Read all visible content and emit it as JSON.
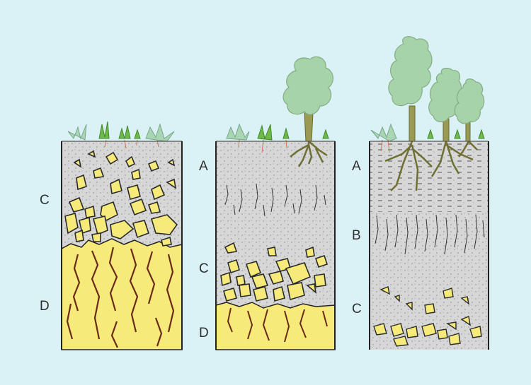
{
  "colors": {
    "background": "#daf2f6",
    "soil": "#d7d7d7",
    "bedrock": "#f5ea7a",
    "rock_outline": "#2a2a2a",
    "fracture": "#6b2a1a",
    "tree_crown": "#a6d3a8",
    "root": "#7a7a3a",
    "grass": "#7fbf5f"
  },
  "profiles": [
    {
      "layers": [
        "C",
        "D"
      ]
    },
    {
      "layers": [
        "A",
        "C",
        "D"
      ]
    },
    {
      "layers": [
        "A",
        "B",
        "C"
      ]
    }
  ]
}
